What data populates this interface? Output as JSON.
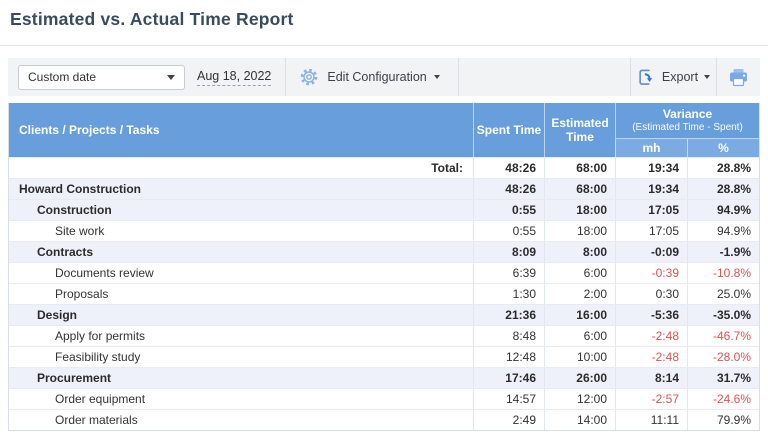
{
  "page": {
    "title": "Estimated vs. Actual Time Report"
  },
  "toolbar": {
    "date_range_selected": "Custom date",
    "date_value": "Aug 18, 2022",
    "edit_configuration_label": "Edit Configuration",
    "export_label": "Export"
  },
  "table": {
    "header": {
      "col_tasks": "Clients / Projects / Tasks",
      "col_spent": "Spent Time",
      "col_estimated_line1": "Estimated",
      "col_estimated_line2": "Time",
      "col_variance": "Variance",
      "col_variance_sub": "(Estimated Time - Spent)",
      "col_mh": "mh",
      "col_pct": "%"
    },
    "total_label": "Total:",
    "total": {
      "spent": "48:26",
      "estimated": "68:00",
      "mh": "19:34",
      "pct": "28.8%"
    },
    "rows": [
      {
        "label": "Howard Construction",
        "level": 0,
        "group": true,
        "spent": "48:26",
        "estimated": "68:00",
        "mh": "19:34",
        "pct": "28.8%"
      },
      {
        "label": "Construction",
        "level": 1,
        "group": true,
        "spent": "0:55",
        "estimated": "18:00",
        "mh": "17:05",
        "pct": "94.9%"
      },
      {
        "label": "Site work",
        "level": 2,
        "group": false,
        "spent": "0:55",
        "estimated": "18:00",
        "mh": "17:05",
        "pct": "94.9%"
      },
      {
        "label": "Contracts",
        "level": 1,
        "group": true,
        "spent": "8:09",
        "estimated": "8:00",
        "mh": "-0:09",
        "pct": "-1.9%"
      },
      {
        "label": "Documents review",
        "level": 2,
        "group": false,
        "spent": "6:39",
        "estimated": "6:00",
        "mh": "-0:39",
        "pct": "-10.8%"
      },
      {
        "label": "Proposals",
        "level": 2,
        "group": false,
        "spent": "1:30",
        "estimated": "2:00",
        "mh": "0:30",
        "pct": "25.0%"
      },
      {
        "label": "Design",
        "level": 1,
        "group": true,
        "spent": "21:36",
        "estimated": "16:00",
        "mh": "-5:36",
        "pct": "-35.0%"
      },
      {
        "label": "Apply for permits",
        "level": 2,
        "group": false,
        "spent": "8:48",
        "estimated": "6:00",
        "mh": "-2:48",
        "pct": "-46.7%"
      },
      {
        "label": "Feasibility study",
        "level": 2,
        "group": false,
        "spent": "12:48",
        "estimated": "10:00",
        "mh": "-2:48",
        "pct": "-28.0%"
      },
      {
        "label": "Procurement",
        "level": 1,
        "group": true,
        "spent": "17:46",
        "estimated": "26:00",
        "mh": "8:14",
        "pct": "31.7%"
      },
      {
        "label": "Order equipment",
        "level": 2,
        "group": false,
        "spent": "14:57",
        "estimated": "12:00",
        "mh": "-2:57",
        "pct": "-24.6%"
      },
      {
        "label": "Order materials",
        "level": 2,
        "group": false,
        "spent": "2:49",
        "estimated": "14:00",
        "mh": "11:11",
        "pct": "79.9%"
      }
    ]
  },
  "colors": {
    "header_blue": "#699edd",
    "subheader_blue": "#7cabe4",
    "group_row_bg": "#eef1f9",
    "negative_red": "#e05252",
    "icon_blue": "#7aa9e8",
    "title_color": "#3a4b60"
  }
}
